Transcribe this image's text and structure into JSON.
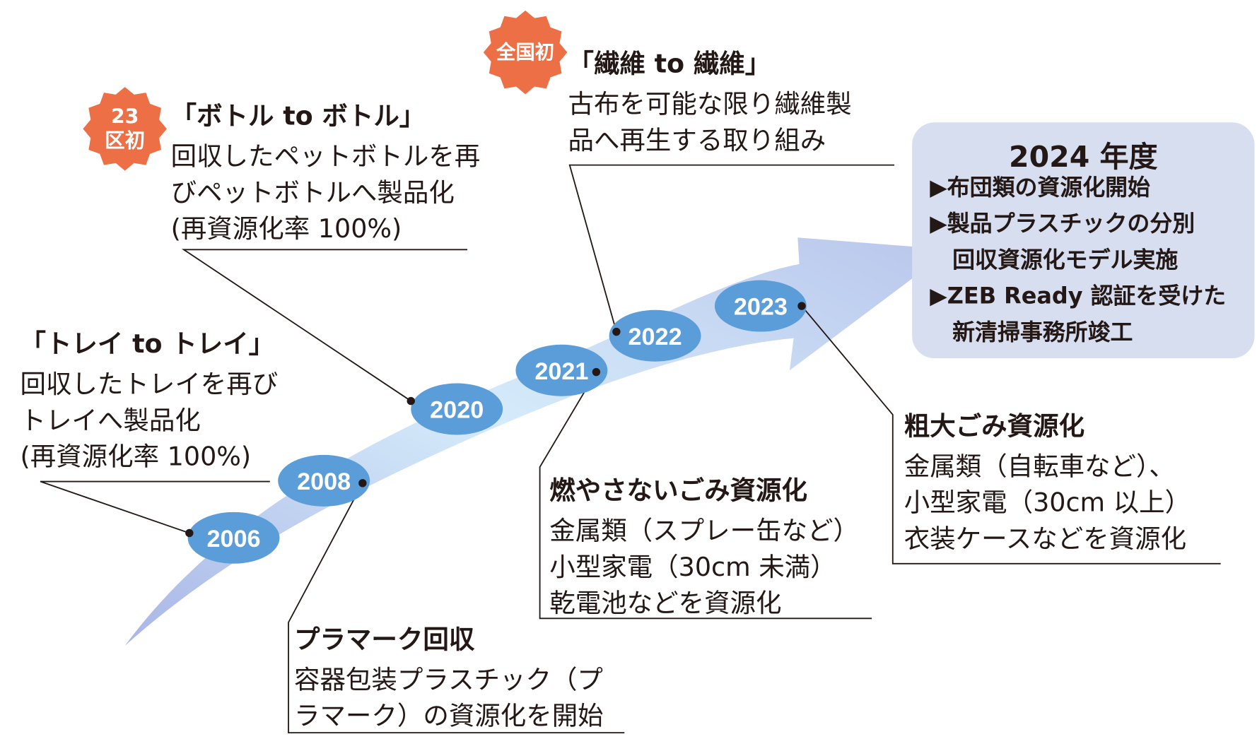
{
  "colors": {
    "badge": "#ec6f45",
    "year_ellipse": "#5b9dd8",
    "arrow": "#c6dcf5",
    "highlight_box": "#d6deef",
    "text": "#231815"
  },
  "years": [
    "2006",
    "2008",
    "2020",
    "2021",
    "2022",
    "2023"
  ],
  "badges": {
    "ward_first": {
      "line1": "23",
      "line2": "区初"
    },
    "national_first": {
      "text": "全国初"
    }
  },
  "tray": {
    "heading": "「トレイ to トレイ」",
    "lines": [
      "回収したトレイを再び",
      "トレイへ製品化",
      "(再資源化率 100%)"
    ]
  },
  "bottle": {
    "heading": "「ボトル to ボトル」",
    "lines": [
      "回収したペットボトルを再",
      "びペットボトルへ製品化",
      "(再資源化率 100%)"
    ]
  },
  "fiber": {
    "heading": "「繊維 to 繊維」",
    "lines": [
      "古布を可能な限り繊維製",
      "品へ再生する取り組み"
    ]
  },
  "pla_mark": {
    "heading": "プラマーク回収",
    "lines": [
      "容器包装プラスチック（プ",
      "ラマーク）の資源化を開始"
    ]
  },
  "non_burnable": {
    "heading": "燃やさないごみ資源化",
    "lines": [
      "金属類（スプレー缶など）",
      "小型家電（30cm 未満）",
      "乾電池などを資源化"
    ]
  },
  "oversized": {
    "heading": "粗大ごみ資源化",
    "lines": [
      "金属類（自転車など）、",
      "小型家電（30cm 以上）",
      "衣装ケースなどを資源化"
    ]
  },
  "fy2024": {
    "title": "2024 年度",
    "items": [
      "▶布団類の資源化開始",
      "▶製品プラスチックの分別",
      "　回収資源化モデル実施",
      "▶ZEB Ready 認証を受けた",
      "　新清掃事務所竣工"
    ]
  }
}
